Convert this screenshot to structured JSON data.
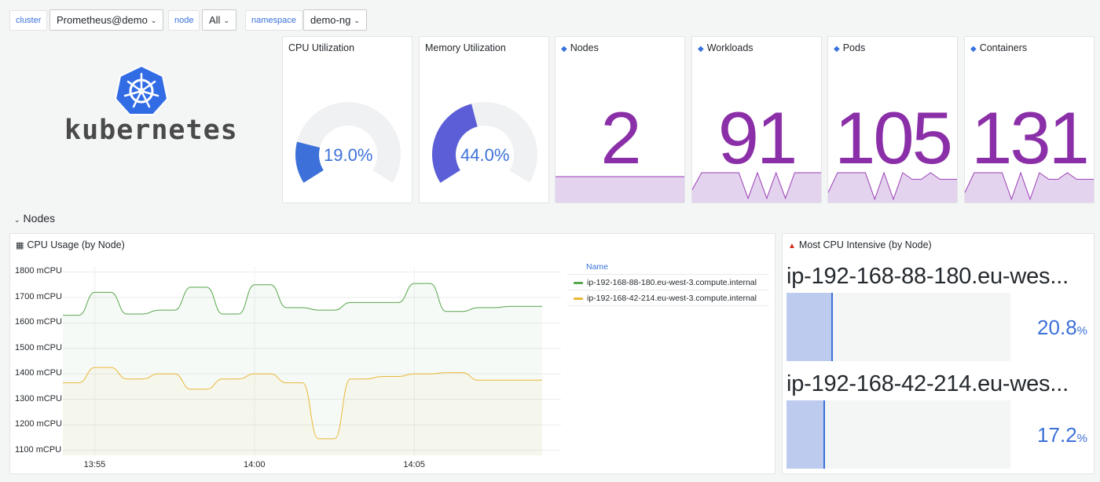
{
  "variables": [
    {
      "label": "cluster",
      "value": "Prometheus@demo"
    },
    {
      "label": "node",
      "value": "All"
    },
    {
      "label": "namespace",
      "value": "demo-ng"
    }
  ],
  "logo": {
    "text": "kubernetes",
    "icon": "kubernetes-helm-wheel-icon",
    "color": "#326ce5"
  },
  "gauges": [
    {
      "title": "CPU Utilization",
      "value": 19.0,
      "display": "19.0%",
      "fill_color": "#3d71d9"
    },
    {
      "title": "Memory Utilization",
      "value": 44.0,
      "display": "44.0%",
      "fill_color": "#5b5ed6"
    }
  ],
  "stats": [
    {
      "title": "Nodes",
      "value": "2",
      "spark": [
        2,
        2,
        2,
        2,
        2,
        2,
        2,
        2,
        2,
        2,
        2,
        2,
        2,
        2,
        2
      ]
    },
    {
      "title": "Workloads",
      "value": "91",
      "spark": [
        0.3,
        0.7,
        0.7,
        0.7,
        0.7,
        0.7,
        0.1,
        0.7,
        0.1,
        0.7,
        0.1,
        0.7,
        0.7,
        0.7,
        0.7
      ]
    },
    {
      "title": "Pods",
      "value": "105",
      "spark": [
        0.3,
        0.9,
        0.9,
        0.9,
        0.9,
        0.1,
        0.9,
        0.1,
        0.9,
        0.7,
        0.7,
        0.9,
        0.7,
        0.7,
        0.7
      ]
    },
    {
      "title": "Containers",
      "value": "131",
      "spark": [
        0.3,
        0.9,
        0.9,
        0.9,
        0.9,
        0.1,
        0.9,
        0.1,
        0.9,
        0.7,
        0.7,
        0.9,
        0.7,
        0.7,
        0.7
      ]
    }
  ],
  "accent_colors": {
    "stat_number": "#8b2fa8",
    "spark_fill": "#e3d3ee",
    "spark_line": "#9b3fb5",
    "blue": "#3d71d9"
  },
  "nodes_row": {
    "title": "Nodes"
  },
  "cpu_usage_panel": {
    "title": "CPU Usage (by Node)",
    "legend_header": "Name"
  },
  "chart_data": {
    "type": "line",
    "title": "CPU Usage (by Node)",
    "y_ticks": [
      "1800 mCPU",
      "1700 mCPU",
      "1600 mCPU",
      "1500 mCPU",
      "1400 mCPU",
      "1300 mCPU",
      "1200 mCPU",
      "1100 mCPU"
    ],
    "x_ticks": [
      "13:55",
      "14:00",
      "14:05"
    ],
    "ylim": [
      1080,
      1820
    ],
    "series": [
      {
        "name": "ip-192-168-88-180.eu-west-3.compute.internal",
        "color": "#56a64b",
        "x": [
          "13:54:00",
          "13:54:30",
          "13:55:00",
          "13:55:30",
          "13:56:00",
          "13:56:30",
          "13:57:00",
          "13:57:30",
          "13:58:00",
          "13:58:30",
          "13:59:00",
          "13:59:30",
          "14:00:00",
          "14:00:30",
          "14:01:00",
          "14:01:30",
          "14:02:00",
          "14:02:30",
          "14:03:00",
          "14:03:30",
          "14:04:00",
          "14:04:30",
          "14:05:00",
          "14:05:30",
          "14:06:00",
          "14:06:30",
          "14:07:00",
          "14:07:30",
          "14:08:00",
          "14:08:30",
          "14:09:00"
        ],
        "y": [
          1630,
          1630,
          1720,
          1720,
          1635,
          1635,
          1650,
          1650,
          1740,
          1740,
          1635,
          1635,
          1750,
          1750,
          1660,
          1660,
          1650,
          1650,
          1680,
          1680,
          1680,
          1680,
          1755,
          1755,
          1645,
          1645,
          1660,
          1660,
          1665,
          1665,
          1665
        ]
      },
      {
        "name": "ip-192-168-42-214.eu-west-3.compute.internal",
        "color": "#eab839",
        "x": [
          "13:54:00",
          "13:54:30",
          "13:55:00",
          "13:55:30",
          "13:56:00",
          "13:56:30",
          "13:57:00",
          "13:57:30",
          "13:58:00",
          "13:58:30",
          "13:59:00",
          "13:59:30",
          "14:00:00",
          "14:00:30",
          "14:01:00",
          "14:01:30",
          "14:02:00",
          "14:02:30",
          "14:03:00",
          "14:03:30",
          "14:04:00",
          "14:04:30",
          "14:05:00",
          "14:05:30",
          "14:06:00",
          "14:06:30",
          "14:07:00",
          "14:07:30",
          "14:08:00",
          "14:08:30",
          "14:09:00"
        ],
        "y": [
          1365,
          1365,
          1425,
          1425,
          1380,
          1380,
          1400,
          1400,
          1340,
          1340,
          1380,
          1380,
          1400,
          1400,
          1365,
          1365,
          1145,
          1145,
          1380,
          1380,
          1390,
          1390,
          1400,
          1400,
          1405,
          1405,
          1375,
          1375,
          1375,
          1375,
          1375
        ]
      }
    ]
  },
  "intensive_panel": {
    "title": "Most CPU Intensive (by Node)",
    "items": [
      {
        "name": "ip-192-168-88-180.eu-wes...",
        "value": 20.8,
        "display": "20.8",
        "unit": "%"
      },
      {
        "name": "ip-192-168-42-214.eu-wes...",
        "value": 17.2,
        "display": "17.2",
        "unit": "%"
      }
    ]
  }
}
